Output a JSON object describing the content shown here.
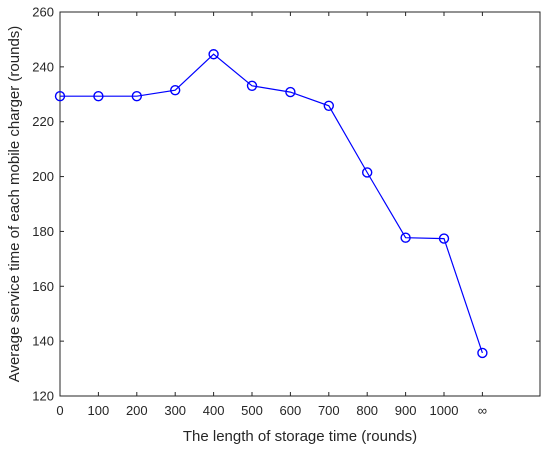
{
  "chart_data": {
    "type": "line",
    "title": "",
    "xlabel": "The length of storage time (rounds)",
    "ylabel": "Average service time of each mobile charger (rounds)",
    "categories": [
      "0",
      "100",
      "200",
      "300",
      "400",
      "500",
      "600",
      "700",
      "800",
      "900",
      "1000",
      "∞"
    ],
    "series": [
      {
        "values": [
          229.3,
          229.3,
          229.3,
          231.5,
          244.6,
          233.1,
          230.8,
          225.8,
          201.5,
          177.7,
          177.4,
          135.7
        ],
        "color": "#0000ff",
        "marker": "circle"
      }
    ],
    "ylim": [
      120,
      260
    ],
    "yticks": [
      120,
      140,
      160,
      180,
      200,
      220,
      240,
      260
    ],
    "grid": false
  }
}
